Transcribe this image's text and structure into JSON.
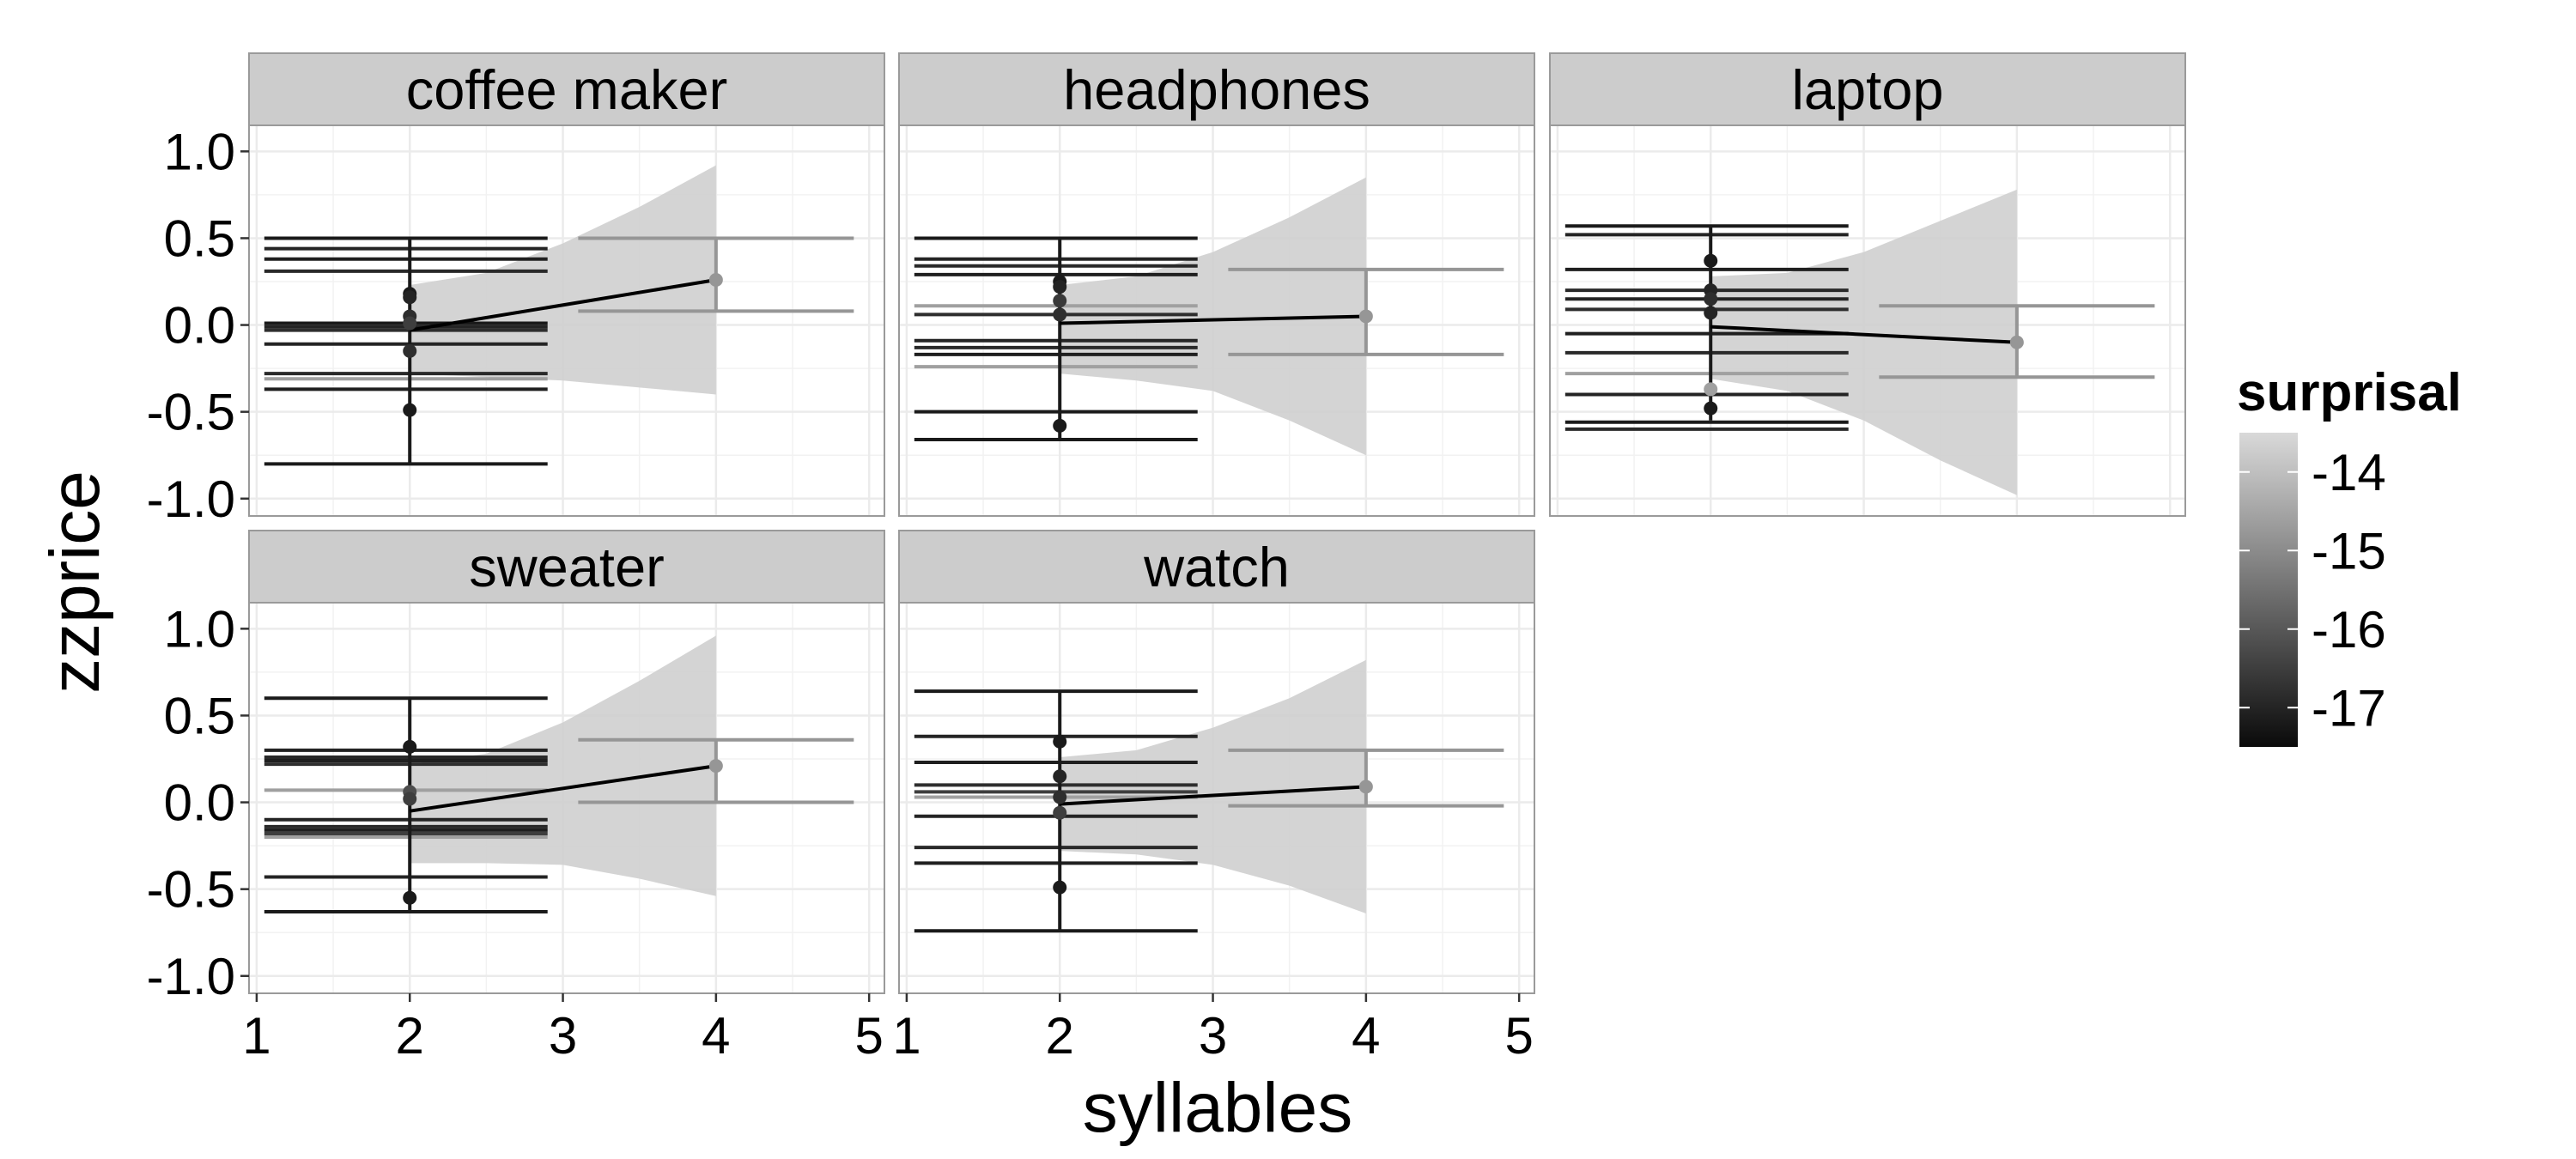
{
  "chart_data": {
    "type": "scatter",
    "xlabel": "syllables",
    "ylabel": "zzprice",
    "xlim": [
      0.95,
      5.1
    ],
    "ylim": [
      -1.1,
      1.15
    ],
    "x_ticks": [
      1,
      2,
      3,
      4,
      5
    ],
    "y_ticks": [
      1.0,
      0.5,
      0.0,
      -0.5,
      -1.0
    ],
    "y_tick_labels": [
      "1.0",
      "0.5",
      "0.0",
      "-0.5",
      "-1.0"
    ],
    "grid": true,
    "facets_layout": {
      "columns": 3,
      "rows": 2
    },
    "legend": {
      "title": "surprisal",
      "placement": "right",
      "labels": [
        "-14",
        "-15",
        "-16",
        "-17"
      ],
      "values": [
        -14,
        -15,
        -16,
        -17
      ],
      "range": [
        -17.5,
        -13.5
      ],
      "color_low": "#0a0a0a",
      "color_high": "#d9d9d9"
    },
    "colors": {
      "panel_bg": "#ffffff",
      "strip_bg": "#cccccc",
      "grid": "#ebebeb",
      "ribbon": "#cfcfcf"
    },
    "facets": [
      {
        "name": "coffee maker",
        "points": [
          {
            "x": 2,
            "y": 0.18,
            "s": -17.2
          },
          {
            "x": 2,
            "y": 0.16,
            "s": -17.0
          },
          {
            "x": 2,
            "y": 0.05,
            "s": -16.8
          },
          {
            "x": 2,
            "y": 0.01,
            "s": -16.5
          },
          {
            "x": 2,
            "y": -0.15,
            "s": -16.8
          },
          {
            "x": 2,
            "y": -0.49,
            "s": -17.2
          },
          {
            "x": 4,
            "y": 0.26,
            "s": -14.8
          }
        ],
        "errorbars": [
          {
            "x": 2,
            "ymin": -0.8,
            "ymax": 0.5
          },
          {
            "x": 4,
            "ymin": 0.08,
            "ymax": 0.5
          }
        ],
        "hlines": [
          {
            "y": 0.5,
            "x1": 1.05,
            "x2": 2.9,
            "s": -17.2
          },
          {
            "y": 0.44,
            "x1": 1.05,
            "x2": 2.9,
            "s": -17.0
          },
          {
            "y": 0.38,
            "x1": 1.05,
            "x2": 2.9,
            "s": -17.1
          },
          {
            "y": 0.31,
            "x1": 1.05,
            "x2": 2.9,
            "s": -16.9
          },
          {
            "y": 0.01,
            "x1": 1.05,
            "x2": 2.9,
            "s": -17.2
          },
          {
            "y": -0.01,
            "x1": 1.05,
            "x2": 2.9,
            "s": -17.0
          },
          {
            "y": -0.03,
            "x1": 1.05,
            "x2": 2.9,
            "s": -16.8
          },
          {
            "y": -0.11,
            "x1": 1.05,
            "x2": 2.9,
            "s": -17.0
          },
          {
            "y": -0.28,
            "x1": 1.05,
            "x2": 2.9,
            "s": -16.9
          },
          {
            "y": -0.31,
            "x1": 1.05,
            "x2": 2.9,
            "s": -14.6
          },
          {
            "y": -0.37,
            "x1": 1.05,
            "x2": 2.9,
            "s": -17.1
          },
          {
            "y": -0.8,
            "x1": 1.05,
            "x2": 2.9,
            "s": -17.2
          },
          {
            "y": 0.5,
            "x1": 3.1,
            "x2": 4.9,
            "s": -14.8
          },
          {
            "y": 0.08,
            "x1": 3.1,
            "x2": 4.9,
            "s": -14.8
          }
        ],
        "fit": {
          "x": [
            2,
            4
          ],
          "y": [
            -0.03,
            0.26
          ]
        },
        "ribbon": {
          "x": [
            2,
            2.5,
            3,
            3.5,
            4
          ],
          "upper": [
            0.23,
            0.3,
            0.47,
            0.68,
            0.92
          ],
          "lower": [
            -0.28,
            -0.3,
            -0.32,
            -0.36,
            -0.4
          ]
        }
      },
      {
        "name": "headphones",
        "points": [
          {
            "x": 2,
            "y": 0.25,
            "s": -17.2
          },
          {
            "x": 2,
            "y": 0.22,
            "s": -17.0
          },
          {
            "x": 2,
            "y": 0.14,
            "s": -16.6
          },
          {
            "x": 2,
            "y": 0.06,
            "s": -16.8
          },
          {
            "x": 2,
            "y": -0.58,
            "s": -17.2
          },
          {
            "x": 4,
            "y": 0.05,
            "s": -14.8
          }
        ],
        "errorbars": [
          {
            "x": 2,
            "ymin": -0.66,
            "ymax": 0.5
          },
          {
            "x": 4,
            "ymin": -0.17,
            "ymax": 0.32
          }
        ],
        "hlines": [
          {
            "y": 0.5,
            "x1": 1.05,
            "x2": 2.9,
            "s": -17.2
          },
          {
            "y": 0.38,
            "x1": 1.05,
            "x2": 2.9,
            "s": -17.0
          },
          {
            "y": 0.34,
            "x1": 1.05,
            "x2": 2.9,
            "s": -16.9
          },
          {
            "y": 0.29,
            "x1": 1.05,
            "x2": 2.9,
            "s": -17.1
          },
          {
            "y": 0.11,
            "x1": 1.05,
            "x2": 2.9,
            "s": -14.6
          },
          {
            "y": 0.06,
            "x1": 1.05,
            "x2": 2.9,
            "s": -16.8
          },
          {
            "y": -0.09,
            "x1": 1.05,
            "x2": 2.9,
            "s": -17.0
          },
          {
            "y": -0.13,
            "x1": 1.05,
            "x2": 2.9,
            "s": -16.9
          },
          {
            "y": -0.17,
            "x1": 1.05,
            "x2": 2.9,
            "s": -17.1
          },
          {
            "y": -0.24,
            "x1": 1.05,
            "x2": 2.9,
            "s": -14.6
          },
          {
            "y": -0.5,
            "x1": 1.05,
            "x2": 2.9,
            "s": -17.2
          },
          {
            "y": -0.66,
            "x1": 1.05,
            "x2": 2.9,
            "s": -17.2
          },
          {
            "y": 0.32,
            "x1": 3.1,
            "x2": 4.9,
            "s": -14.8
          },
          {
            "y": -0.17,
            "x1": 3.1,
            "x2": 4.9,
            "s": -14.8
          }
        ],
        "fit": {
          "x": [
            2,
            4
          ],
          "y": [
            0.01,
            0.05
          ]
        },
        "ribbon": {
          "x": [
            2,
            2.5,
            3,
            3.5,
            4
          ],
          "upper": [
            0.23,
            0.28,
            0.42,
            0.62,
            0.85
          ],
          "lower": [
            -0.28,
            -0.32,
            -0.38,
            -0.55,
            -0.75
          ]
        }
      },
      {
        "name": "laptop",
        "points": [
          {
            "x": 2,
            "y": 0.37,
            "s": -17.2
          },
          {
            "x": 2,
            "y": 0.2,
            "s": -17.0
          },
          {
            "x": 2,
            "y": 0.15,
            "s": -16.8
          },
          {
            "x": 2,
            "y": 0.07,
            "s": -17.0
          },
          {
            "x": 2,
            "y": -0.37,
            "s": -14.6
          },
          {
            "x": 2,
            "y": -0.48,
            "s": -17.2
          },
          {
            "x": 4,
            "y": -0.1,
            "s": -14.8
          }
        ],
        "errorbars": [
          {
            "x": 2,
            "ymin": -0.55,
            "ymax": 0.57
          },
          {
            "x": 4,
            "ymin": -0.3,
            "ymax": 0.11
          }
        ],
        "hlines": [
          {
            "y": 0.57,
            "x1": 1.05,
            "x2": 2.9,
            "s": -17.2
          },
          {
            "y": 0.52,
            "x1": 1.05,
            "x2": 2.9,
            "s": -17.0
          },
          {
            "y": 0.32,
            "x1": 1.05,
            "x2": 2.9,
            "s": -17.1
          },
          {
            "y": 0.2,
            "x1": 1.05,
            "x2": 2.9,
            "s": -16.9
          },
          {
            "y": 0.15,
            "x1": 1.05,
            "x2": 2.9,
            "s": -17.0
          },
          {
            "y": 0.09,
            "x1": 1.05,
            "x2": 2.9,
            "s": -16.8
          },
          {
            "y": -0.05,
            "x1": 1.05,
            "x2": 2.9,
            "s": -17.1
          },
          {
            "y": -0.16,
            "x1": 1.05,
            "x2": 2.9,
            "s": -16.9
          },
          {
            "y": -0.28,
            "x1": 1.05,
            "x2": 2.9,
            "s": -14.6
          },
          {
            "y": -0.4,
            "x1": 1.05,
            "x2": 2.9,
            "s": -17.0
          },
          {
            "y": -0.56,
            "x1": 1.05,
            "x2": 2.9,
            "s": -17.2
          },
          {
            "y": -0.6,
            "x1": 1.05,
            "x2": 2.9,
            "s": -16.9
          },
          {
            "y": 0.11,
            "x1": 3.1,
            "x2": 4.9,
            "s": -14.8
          },
          {
            "y": -0.3,
            "x1": 3.1,
            "x2": 4.9,
            "s": -14.8
          }
        ],
        "fit": {
          "x": [
            2,
            4
          ],
          "y": [
            -0.01,
            -0.1
          ]
        },
        "ribbon": {
          "x": [
            2,
            2.5,
            3,
            3.5,
            4
          ],
          "upper": [
            0.28,
            0.3,
            0.42,
            0.6,
            0.78
          ],
          "lower": [
            -0.31,
            -0.38,
            -0.55,
            -0.78,
            -0.98
          ]
        }
      },
      {
        "name": "sweater",
        "points": [
          {
            "x": 2,
            "y": 0.32,
            "s": -17.2
          },
          {
            "x": 2,
            "y": 0.06,
            "s": -16.2
          },
          {
            "x": 2,
            "y": 0.02,
            "s": -16.5
          },
          {
            "x": 2,
            "y": -0.55,
            "s": -17.2
          },
          {
            "x": 4,
            "y": 0.21,
            "s": -14.8
          }
        ],
        "errorbars": [
          {
            "x": 2,
            "ymin": -0.63,
            "ymax": 0.6
          },
          {
            "x": 4,
            "ymin": 0.0,
            "ymax": 0.36
          }
        ],
        "hlines": [
          {
            "y": 0.6,
            "x1": 1.05,
            "x2": 2.9,
            "s": -17.2
          },
          {
            "y": 0.3,
            "x1": 1.05,
            "x2": 2.9,
            "s": -17.0
          },
          {
            "y": 0.26,
            "x1": 1.05,
            "x2": 2.9,
            "s": -16.9
          },
          {
            "y": 0.24,
            "x1": 1.05,
            "x2": 2.9,
            "s": -17.1
          },
          {
            "y": 0.22,
            "x1": 1.05,
            "x2": 2.9,
            "s": -16.8
          },
          {
            "y": 0.07,
            "x1": 1.05,
            "x2": 2.9,
            "s": -14.6
          },
          {
            "y": -0.1,
            "x1": 1.05,
            "x2": 2.9,
            "s": -17.0
          },
          {
            "y": -0.14,
            "x1": 1.05,
            "x2": 2.9,
            "s": -16.9
          },
          {
            "y": -0.16,
            "x1": 1.05,
            "x2": 2.9,
            "s": -17.1
          },
          {
            "y": -0.18,
            "x1": 1.05,
            "x2": 2.9,
            "s": -16.5
          },
          {
            "y": -0.2,
            "x1": 1.05,
            "x2": 2.9,
            "s": -14.6
          },
          {
            "y": -0.43,
            "x1": 1.05,
            "x2": 2.9,
            "s": -17.0
          },
          {
            "y": -0.63,
            "x1": 1.05,
            "x2": 2.9,
            "s": -17.2
          },
          {
            "y": 0.36,
            "x1": 3.1,
            "x2": 4.9,
            "s": -14.8
          },
          {
            "y": 0.0,
            "x1": 3.1,
            "x2": 4.9,
            "s": -14.8
          }
        ],
        "fit": {
          "x": [
            2,
            4
          ],
          "y": [
            -0.05,
            0.21
          ]
        },
        "ribbon": {
          "x": [
            2,
            2.5,
            3,
            3.5,
            4
          ],
          "upper": [
            0.22,
            0.28,
            0.46,
            0.7,
            0.96
          ],
          "lower": [
            -0.35,
            -0.35,
            -0.36,
            -0.44,
            -0.54
          ]
        }
      },
      {
        "name": "watch",
        "points": [
          {
            "x": 2,
            "y": 0.35,
            "s": -17.2
          },
          {
            "x": 2,
            "y": 0.15,
            "s": -17.0
          },
          {
            "x": 2,
            "y": 0.03,
            "s": -16.8
          },
          {
            "x": 2,
            "y": -0.06,
            "s": -16.5
          },
          {
            "x": 2,
            "y": -0.49,
            "s": -17.2
          },
          {
            "x": 4,
            "y": 0.09,
            "s": -14.8
          }
        ],
        "errorbars": [
          {
            "x": 2,
            "ymin": -0.74,
            "ymax": 0.64
          },
          {
            "x": 4,
            "ymin": -0.02,
            "ymax": 0.3
          }
        ],
        "hlines": [
          {
            "y": 0.64,
            "x1": 1.05,
            "x2": 2.9,
            "s": -17.2
          },
          {
            "y": 0.38,
            "x1": 1.05,
            "x2": 2.9,
            "s": -17.0
          },
          {
            "y": 0.23,
            "x1": 1.05,
            "x2": 2.9,
            "s": -17.1
          },
          {
            "y": 0.1,
            "x1": 1.05,
            "x2": 2.9,
            "s": -16.8
          },
          {
            "y": 0.06,
            "x1": 1.05,
            "x2": 2.9,
            "s": -16.5
          },
          {
            "y": 0.03,
            "x1": 1.05,
            "x2": 2.9,
            "s": -14.6
          },
          {
            "y": -0.08,
            "x1": 1.05,
            "x2": 2.9,
            "s": -17.0
          },
          {
            "y": -0.26,
            "x1": 1.05,
            "x2": 2.9,
            "s": -16.9
          },
          {
            "y": -0.35,
            "x1": 1.05,
            "x2": 2.9,
            "s": -17.1
          },
          {
            "y": -0.74,
            "x1": 1.05,
            "x2": 2.9,
            "s": -17.2
          },
          {
            "y": 0.3,
            "x1": 3.1,
            "x2": 4.9,
            "s": -14.8
          },
          {
            "y": -0.02,
            "x1": 3.1,
            "x2": 4.9,
            "s": -14.8
          }
        ],
        "fit": {
          "x": [
            2,
            4
          ],
          "y": [
            -0.01,
            0.09
          ]
        },
        "ribbon": {
          "x": [
            2,
            2.5,
            3,
            3.5,
            4
          ],
          "upper": [
            0.26,
            0.3,
            0.43,
            0.6,
            0.82
          ],
          "lower": [
            -0.28,
            -0.3,
            -0.36,
            -0.48,
            -0.64
          ]
        }
      }
    ]
  }
}
